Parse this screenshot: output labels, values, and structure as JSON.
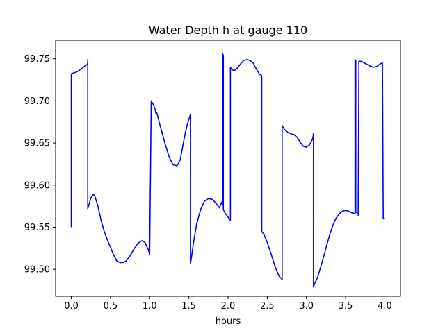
{
  "chart_data": {
    "type": "line",
    "title": "Water Depth h at gauge 110",
    "xlabel": "hours",
    "ylabel": "",
    "xlim": [
      -0.2,
      4.2
    ],
    "ylim": [
      99.468,
      99.772
    ],
    "xticks": [
      0.0,
      0.5,
      1.0,
      1.5,
      2.0,
      2.5,
      3.0,
      3.5,
      4.0
    ],
    "xtick_labels": [
      "0.0",
      "0.5",
      "1.0",
      "1.5",
      "2.0",
      "2.5",
      "3.0",
      "3.5",
      "4.0"
    ],
    "yticks": [
      99.5,
      99.55,
      99.6,
      99.65,
      99.7,
      99.75
    ],
    "ytick_labels": [
      "99.50",
      "99.55",
      "99.60",
      "99.65",
      "99.70",
      "99.75"
    ],
    "grid": false,
    "line_color": "#0000ff",
    "series": [
      {
        "name": "",
        "color": "#0000ff",
        "x": [
          0.0,
          0.0,
          0.02,
          0.06,
          0.1,
          0.14,
          0.18,
          0.2,
          0.21,
          0.21,
          0.21,
          0.22,
          0.25,
          0.28,
          0.3,
          0.34,
          0.38,
          0.42,
          0.46,
          0.5,
          0.54,
          0.58,
          0.62,
          0.66,
          0.7,
          0.75,
          0.8,
          0.85,
          0.9,
          0.94,
          0.98,
          1.0,
          1.02,
          1.02,
          1.05,
          1.07,
          1.08,
          1.09,
          1.1,
          1.12,
          1.15,
          1.2,
          1.25,
          1.3,
          1.35,
          1.39,
          1.42,
          1.45,
          1.48,
          1.52,
          1.52,
          1.53,
          1.56,
          1.6,
          1.65,
          1.7,
          1.75,
          1.8,
          1.85,
          1.89,
          1.92,
          1.93,
          1.93,
          1.94,
          1.94,
          1.96,
          2.0,
          2.03,
          2.03,
          2.05,
          2.08,
          2.12,
          2.16,
          2.2,
          2.24,
          2.28,
          2.32,
          2.36,
          2.4,
          2.43,
          2.43,
          2.46,
          2.5,
          2.55,
          2.6,
          2.65,
          2.69,
          2.69,
          2.7,
          2.72,
          2.76,
          2.8,
          2.84,
          2.88,
          2.92,
          2.96,
          3.0,
          3.04,
          3.08,
          3.09,
          3.09,
          3.1,
          3.14,
          3.18,
          3.22,
          3.26,
          3.3,
          3.34,
          3.38,
          3.42,
          3.46,
          3.5,
          3.54,
          3.58,
          3.62,
          3.62,
          3.63,
          3.63,
          3.66,
          3.66,
          3.67,
          3.7,
          3.74,
          3.78,
          3.82,
          3.86,
          3.9,
          3.94,
          3.97,
          3.97,
          3.98,
          4.0
        ],
        "y": [
          99.55,
          99.732,
          99.733,
          99.734,
          99.736,
          99.739,
          99.742,
          99.743,
          99.745,
          99.749,
          99.572,
          99.575,
          99.585,
          99.589,
          99.587,
          99.575,
          99.558,
          99.545,
          99.535,
          99.526,
          99.517,
          99.51,
          99.508,
          99.508,
          99.51,
          99.516,
          99.524,
          99.531,
          99.534,
          99.532,
          99.524,
          99.518,
          99.7,
          99.7,
          99.695,
          99.69,
          99.685,
          99.686,
          99.683,
          99.675,
          99.665,
          99.648,
          99.633,
          99.624,
          99.623,
          99.63,
          99.645,
          99.66,
          99.672,
          99.684,
          99.507,
          99.512,
          99.532,
          99.554,
          99.571,
          99.581,
          99.584,
          99.583,
          99.578,
          99.573,
          99.58,
          99.577,
          99.756,
          99.754,
          99.571,
          99.567,
          99.562,
          99.558,
          99.74,
          99.737,
          99.736,
          99.739,
          99.744,
          99.748,
          99.749,
          99.748,
          99.745,
          99.738,
          99.732,
          99.73,
          99.545,
          99.541,
          99.532,
          99.518,
          99.503,
          99.492,
          99.488,
          99.671,
          99.669,
          99.666,
          99.663,
          99.661,
          99.66,
          99.657,
          99.651,
          99.646,
          99.645,
          99.648,
          99.655,
          99.661,
          99.479,
          99.482,
          99.49,
          99.502,
          99.515,
          99.529,
          99.542,
          99.553,
          99.561,
          99.566,
          99.569,
          99.57,
          99.569,
          99.567,
          99.566,
          99.749,
          99.748,
          99.568,
          99.566,
          99.564,
          99.747,
          99.747,
          99.745,
          99.743,
          99.741,
          99.74,
          99.741,
          99.744,
          99.745,
          99.744,
          99.56,
          99.56
        ]
      }
    ]
  }
}
